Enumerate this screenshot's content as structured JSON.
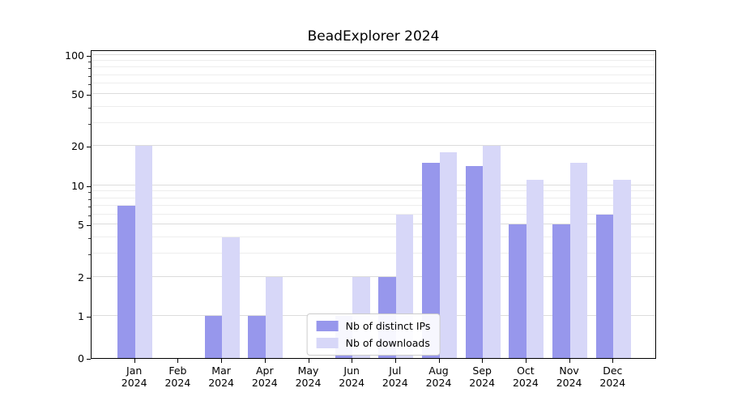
{
  "chart_data": {
    "type": "bar",
    "title": "BeadExplorer 2024",
    "xlabel": "",
    "ylabel": "",
    "yscale": "symlog",
    "ylim": [
      0,
      110
    ],
    "yticks": [
      0,
      1,
      2,
      5,
      10,
      20,
      50,
      100
    ],
    "minor_gridlines": [
      3,
      4,
      6,
      7,
      8,
      9,
      30,
      40,
      60,
      70,
      80,
      90
    ],
    "grid": true,
    "x_year": "2024",
    "categories": [
      "Jan",
      "Feb",
      "Mar",
      "Apr",
      "May",
      "Jun",
      "Jul",
      "Aug",
      "Sep",
      "Oct",
      "Nov",
      "Dec"
    ],
    "series": [
      {
        "name": "Nb of distinct IPs",
        "color": "#9797ec",
        "values": [
          7,
          0,
          1,
          1,
          0,
          1,
          2,
          15,
          14,
          5,
          5,
          6
        ]
      },
      {
        "name": "Nb of downloads",
        "color": "#d7d7f8",
        "values": [
          20,
          0,
          4,
          2,
          0,
          2,
          6,
          18,
          20,
          11,
          15,
          11
        ]
      }
    ],
    "legend": {
      "position": "lower center",
      "items": [
        "Nb of distinct IPs",
        "Nb of downloads"
      ]
    }
  }
}
